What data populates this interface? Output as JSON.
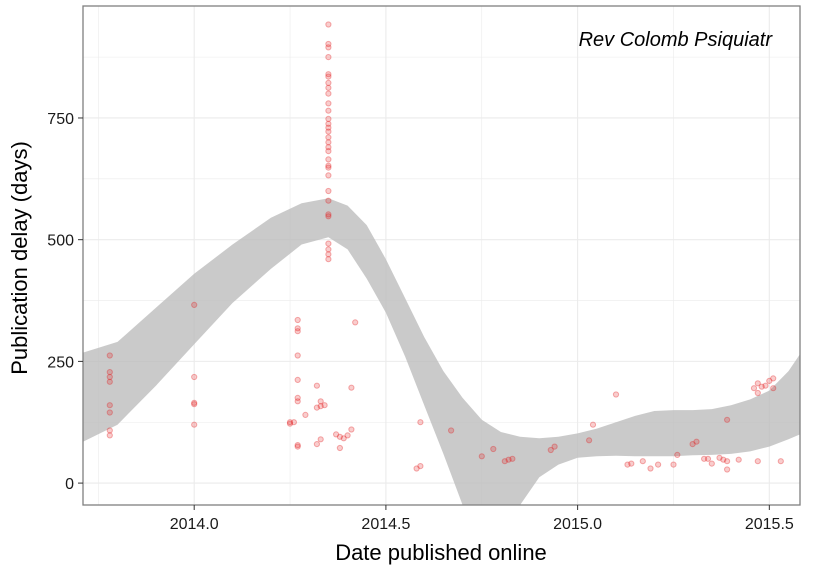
{
  "chart_data": {
    "type": "scatter",
    "title": "",
    "annotation": "Rev Colomb Psiquiatr",
    "xlabel": "Date published online",
    "ylabel": "Publication delay (days)",
    "xlim": [
      2013.71,
      2015.58
    ],
    "ylim": [
      -45,
      980
    ],
    "x_ticks": [
      {
        "value": 2014.0,
        "label": "2014.0"
      },
      {
        "value": 2014.5,
        "label": "2014.5"
      },
      {
        "value": 2015.0,
        "label": "2015.0"
      },
      {
        "value": 2015.5,
        "label": "2015.5"
      }
    ],
    "y_ticks": [
      {
        "value": 0,
        "label": "0"
      },
      {
        "value": 250,
        "label": "250"
      },
      {
        "value": 500,
        "label": "500"
      },
      {
        "value": 750,
        "label": "750"
      }
    ],
    "grid": true,
    "colors": {
      "points": "#e31a1c",
      "band": "#bdbdbd",
      "grid": "#ebebeb",
      "panel_border": "#7f7f7f"
    },
    "smooth_band": {
      "x": [
        2013.71,
        2013.8,
        2013.9,
        2014.0,
        2014.1,
        2014.2,
        2014.28,
        2014.35,
        2014.4,
        2014.45,
        2014.5,
        2014.55,
        2014.6,
        2014.65,
        2014.7,
        2014.75,
        2014.8,
        2014.85,
        2014.9,
        2014.95,
        2015.0,
        2015.05,
        2015.1,
        2015.15,
        2015.2,
        2015.25,
        2015.3,
        2015.35,
        2015.4,
        2015.45,
        2015.5,
        2015.55,
        2015.58
      ],
      "lower": [
        85,
        120,
        200,
        285,
        370,
        440,
        490,
        505,
        480,
        420,
        350,
        260,
        160,
        60,
        -35,
        -120,
        -200,
        -200,
        -200,
        -200,
        -200,
        -200,
        -200,
        -200,
        -200,
        -200,
        -200,
        -200,
        -200,
        -200,
        -200,
        -200,
        -200
      ],
      "upper": [
        268,
        290,
        360,
        430,
        490,
        545,
        575,
        585,
        570,
        530,
        460,
        380,
        300,
        230,
        175,
        130,
        105,
        95,
        92,
        95,
        102,
        112,
        125,
        138,
        148,
        150,
        150,
        152,
        160,
        172,
        190,
        230,
        265
      ]
    },
    "smooth_band_lower_right": {
      "x": [
        2014.7,
        2014.75,
        2014.8,
        2014.85,
        2014.9,
        2014.95,
        2015.0,
        2015.05,
        2015.1,
        2015.15,
        2015.2,
        2015.25,
        2015.3,
        2015.35,
        2015.4,
        2015.45,
        2015.5,
        2015.55,
        2015.58
      ],
      "lower": [
        -45,
        -45,
        -45,
        -45,
        12,
        38,
        52,
        55,
        56,
        55,
        55,
        55,
        57,
        58,
        60,
        65,
        75,
        90,
        100
      ]
    },
    "points": [
      [
        2013.78,
        262
      ],
      [
        2013.78,
        228
      ],
      [
        2013.78,
        218
      ],
      [
        2013.78,
        208
      ],
      [
        2013.78,
        160
      ],
      [
        2013.78,
        145
      ],
      [
        2013.78,
        108
      ],
      [
        2013.78,
        98
      ],
      [
        2014.0,
        366
      ],
      [
        2014.0,
        218
      ],
      [
        2014.0,
        165
      ],
      [
        2014.0,
        162
      ],
      [
        2014.0,
        120
      ],
      [
        2014.25,
        125
      ],
      [
        2014.25,
        122
      ],
      [
        2014.26,
        125
      ],
      [
        2014.27,
        335
      ],
      [
        2014.27,
        318
      ],
      [
        2014.27,
        312
      ],
      [
        2014.27,
        262
      ],
      [
        2014.27,
        212
      ],
      [
        2014.27,
        175
      ],
      [
        2014.27,
        168
      ],
      [
        2014.27,
        78
      ],
      [
        2014.27,
        75
      ],
      [
        2014.29,
        140
      ],
      [
        2014.32,
        200
      ],
      [
        2014.32,
        155
      ],
      [
        2014.32,
        80
      ],
      [
        2014.33,
        168
      ],
      [
        2014.33,
        158
      ],
      [
        2014.33,
        90
      ],
      [
        2014.34,
        160
      ],
      [
        2014.35,
        942
      ],
      [
        2014.35,
        902
      ],
      [
        2014.35,
        895
      ],
      [
        2014.35,
        875
      ],
      [
        2014.35,
        840
      ],
      [
        2014.35,
        835
      ],
      [
        2014.35,
        822
      ],
      [
        2014.35,
        812
      ],
      [
        2014.35,
        800
      ],
      [
        2014.35,
        780
      ],
      [
        2014.35,
        765
      ],
      [
        2014.35,
        748
      ],
      [
        2014.35,
        738
      ],
      [
        2014.35,
        730
      ],
      [
        2014.35,
        722
      ],
      [
        2014.35,
        710
      ],
      [
        2014.35,
        700
      ],
      [
        2014.35,
        690
      ],
      [
        2014.35,
        682
      ],
      [
        2014.35,
        665
      ],
      [
        2014.35,
        652
      ],
      [
        2014.35,
        648
      ],
      [
        2014.35,
        632
      ],
      [
        2014.35,
        600
      ],
      [
        2014.35,
        580
      ],
      [
        2014.35,
        552
      ],
      [
        2014.35,
        548
      ],
      [
        2014.35,
        492
      ],
      [
        2014.35,
        480
      ],
      [
        2014.35,
        470
      ],
      [
        2014.35,
        460
      ],
      [
        2014.37,
        100
      ],
      [
        2014.38,
        95
      ],
      [
        2014.38,
        72
      ],
      [
        2014.39,
        92
      ],
      [
        2014.4,
        98
      ],
      [
        2014.41,
        196
      ],
      [
        2014.41,
        110
      ],
      [
        2014.42,
        330
      ],
      [
        2014.58,
        30
      ],
      [
        2014.59,
        125
      ],
      [
        2014.59,
        35
      ],
      [
        2014.67,
        108
      ],
      [
        2014.75,
        55
      ],
      [
        2014.78,
        70
      ],
      [
        2014.81,
        45
      ],
      [
        2014.82,
        48
      ],
      [
        2014.83,
        50
      ],
      [
        2014.93,
        68
      ],
      [
        2014.94,
        75
      ],
      [
        2015.03,
        88
      ],
      [
        2015.04,
        120
      ],
      [
        2015.1,
        182
      ],
      [
        2015.13,
        38
      ],
      [
        2015.14,
        40
      ],
      [
        2015.17,
        45
      ],
      [
        2015.19,
        30
      ],
      [
        2015.21,
        38
      ],
      [
        2015.25,
        38
      ],
      [
        2015.26,
        58
      ],
      [
        2015.3,
        80
      ],
      [
        2015.31,
        85
      ],
      [
        2015.33,
        50
      ],
      [
        2015.34,
        50
      ],
      [
        2015.35,
        40
      ],
      [
        2015.37,
        52
      ],
      [
        2015.38,
        48
      ],
      [
        2015.39,
        130
      ],
      [
        2015.39,
        45
      ],
      [
        2015.39,
        28
      ],
      [
        2015.42,
        48
      ],
      [
        2015.46,
        195
      ],
      [
        2015.47,
        185
      ],
      [
        2015.47,
        205
      ],
      [
        2015.47,
        45
      ],
      [
        2015.48,
        198
      ],
      [
        2015.49,
        200
      ],
      [
        2015.5,
        210
      ],
      [
        2015.51,
        195
      ],
      [
        2015.51,
        215
      ],
      [
        2015.53,
        45
      ]
    ]
  }
}
